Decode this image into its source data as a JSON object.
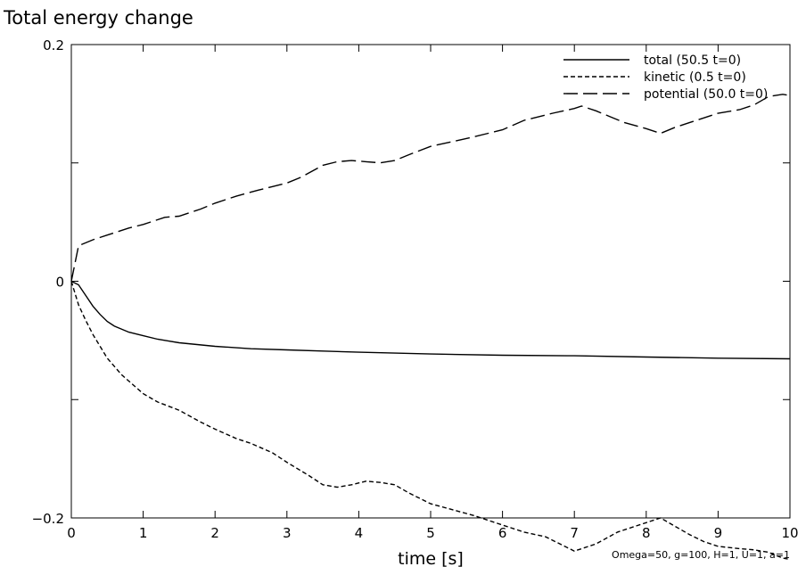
{
  "chart_data": {
    "type": "line",
    "title": "Total energy change",
    "xlabel": "time [s]",
    "ylabel": "",
    "xlim": [
      0,
      10
    ],
    "ylim": [
      -0.2,
      0.2
    ],
    "x_ticks": [
      0,
      1,
      2,
      3,
      4,
      5,
      6,
      7,
      8,
      9,
      10
    ],
    "x_tick_labels": [
      "0",
      "1",
      "2",
      "3",
      "4",
      "5",
      "6",
      "7",
      "8",
      "9",
      "10"
    ],
    "y_ticks": [
      -0.2,
      0,
      0.2
    ],
    "y_tick_labels": [
      "−0.2",
      "0",
      "0.2"
    ],
    "grid": false,
    "legend_position": "top-right",
    "annotation": "Omega=50, g=100, H=1, U=1, a=1",
    "series": [
      {
        "name": "total (50.5 t=0)",
        "style": "solid",
        "x": [
          0,
          0.1,
          0.2,
          0.3,
          0.4,
          0.5,
          0.6,
          0.8,
          1.0,
          1.2,
          1.5,
          2.0,
          2.5,
          3.0,
          3.5,
          4.0,
          5.0,
          6.0,
          7.0,
          8.0,
          9.0,
          10.0
        ],
        "y": [
          0,
          -0.003,
          -0.012,
          -0.021,
          -0.028,
          -0.034,
          -0.038,
          -0.043,
          -0.046,
          -0.049,
          -0.052,
          -0.055,
          -0.057,
          -0.058,
          -0.059,
          -0.06,
          -0.0615,
          -0.0625,
          -0.063,
          -0.064,
          -0.065,
          -0.0655
        ]
      },
      {
        "name": "kinetic (0.5 t=0)",
        "style": "dashed",
        "x": [
          0,
          0.1,
          0.2,
          0.3,
          0.5,
          0.7,
          1.0,
          1.2,
          1.5,
          1.8,
          2.0,
          2.3,
          2.5,
          2.8,
          3.0,
          3.3,
          3.5,
          3.7,
          3.9,
          4.1,
          4.3,
          4.5,
          4.7,
          5.0,
          5.3,
          5.6,
          6.0,
          6.3,
          6.6,
          7.0,
          7.3,
          7.6,
          8.0,
          8.2,
          8.4,
          8.6,
          8.8,
          9.0,
          9.3,
          9.5,
          9.7,
          9.9,
          10.0
        ],
        "y": [
          0,
          -0.02,
          -0.033,
          -0.045,
          -0.065,
          -0.079,
          -0.095,
          -0.102,
          -0.109,
          -0.119,
          -0.125,
          -0.133,
          -0.137,
          -0.145,
          -0.153,
          -0.164,
          -0.172,
          -0.174,
          -0.172,
          -0.169,
          -0.17,
          -0.172,
          -0.179,
          -0.188,
          -0.193,
          -0.198,
          -0.206,
          -0.212,
          -0.216,
          -0.228,
          -0.222,
          -0.212,
          -0.204,
          -0.2,
          -0.207,
          -0.214,
          -0.22,
          -0.224,
          -0.226,
          -0.227,
          -0.229,
          -0.234,
          -0.235
        ]
      },
      {
        "name": "potential (50.0 t=0)",
        "style": "long-dashed",
        "x": [
          0,
          0.1,
          0.3,
          0.5,
          0.8,
          1.0,
          1.3,
          1.5,
          1.8,
          2.0,
          2.3,
          2.6,
          2.8,
          3.0,
          3.2,
          3.5,
          3.7,
          3.9,
          4.1,
          4.3,
          4.5,
          4.7,
          5.0,
          5.3,
          5.6,
          6.0,
          6.3,
          6.7,
          7.0,
          7.1,
          7.3,
          7.5,
          7.7,
          8.0,
          8.2,
          8.4,
          8.6,
          8.8,
          9.0,
          9.3,
          9.5,
          9.7,
          9.9,
          10.0
        ],
        "y": [
          0,
          0.03,
          0.035,
          0.039,
          0.045,
          0.048,
          0.054,
          0.055,
          0.061,
          0.066,
          0.072,
          0.077,
          0.08,
          0.083,
          0.088,
          0.098,
          0.101,
          0.102,
          0.101,
          0.1,
          0.102,
          0.107,
          0.114,
          0.118,
          0.122,
          0.128,
          0.136,
          0.142,
          0.146,
          0.148,
          0.144,
          0.139,
          0.134,
          0.129,
          0.125,
          0.13,
          0.134,
          0.138,
          0.142,
          0.145,
          0.149,
          0.156,
          0.158,
          0.157
        ]
      }
    ]
  }
}
